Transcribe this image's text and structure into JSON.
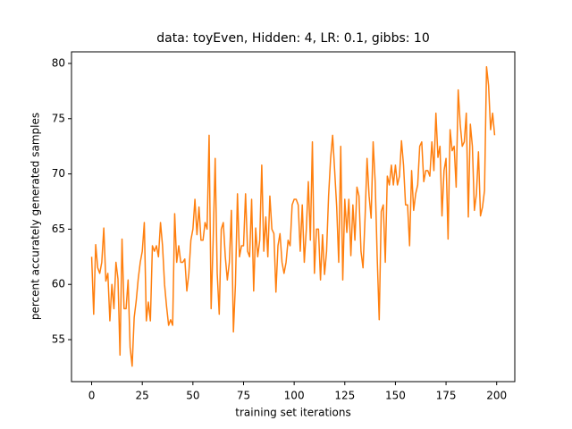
{
  "chart_data": {
    "type": "line",
    "title": "data: toyEven, Hidden: 4, LR: 0.1, gibbs: 10",
    "xlabel": "training set iterations",
    "ylabel": "percent accurately generated samples",
    "x": [
      0,
      1,
      2,
      3,
      4,
      5,
      6,
      7,
      8,
      9,
      10,
      11,
      12,
      13,
      14,
      15,
      16,
      17,
      18,
      19,
      20,
      21,
      22,
      23,
      24,
      25,
      26,
      27,
      28,
      29,
      30,
      31,
      32,
      33,
      34,
      35,
      36,
      37,
      38,
      39,
      40,
      41,
      42,
      43,
      44,
      45,
      46,
      47,
      48,
      49,
      50,
      51,
      52,
      53,
      54,
      55,
      56,
      57,
      58,
      59,
      60,
      61,
      62,
      63,
      64,
      65,
      66,
      67,
      68,
      69,
      70,
      71,
      72,
      73,
      74,
      75,
      76,
      77,
      78,
      79,
      80,
      81,
      82,
      83,
      84,
      85,
      86,
      87,
      88,
      89,
      90,
      91,
      92,
      93,
      94,
      95,
      96,
      97,
      98,
      99,
      100,
      101,
      102,
      103,
      104,
      105,
      106,
      107,
      108,
      109,
      110,
      111,
      112,
      113,
      114,
      115,
      116,
      117,
      118,
      119,
      120,
      121,
      122,
      123,
      124,
      125,
      126,
      127,
      128,
      129,
      130,
      131,
      132,
      133,
      134,
      135,
      136,
      137,
      138,
      139,
      140,
      141,
      142,
      143,
      144,
      145,
      146,
      147,
      148,
      149,
      150,
      151,
      152,
      153,
      154,
      155,
      156,
      157,
      158,
      159,
      160,
      161,
      162,
      163,
      164,
      165,
      166,
      167,
      168,
      169,
      170,
      171,
      172,
      173,
      174,
      175,
      176,
      177,
      178,
      179,
      180,
      181,
      182,
      183,
      184,
      185,
      186,
      187,
      188,
      189,
      190,
      191,
      192,
      193,
      194,
      195,
      196,
      197,
      198,
      199
    ],
    "series": [
      {
        "color": "#ff7f0e",
        "values": [
          62.5,
          57.3,
          63.6,
          61.5,
          61,
          62,
          65.1,
          60.3,
          61,
          56.7,
          60,
          57.8,
          62,
          60.5,
          53.6,
          64.1,
          57.8,
          57.8,
          60.4,
          54.3,
          52.6,
          57,
          58.5,
          60.5,
          62,
          63,
          65.6,
          56.7,
          58.4,
          56.7,
          63.5,
          63,
          63.5,
          62.5,
          65.6,
          63.5,
          60,
          58,
          56.3,
          56.8,
          56.3,
          66.4,
          62,
          63.5,
          62,
          62,
          62.3,
          59.4,
          61,
          64,
          65,
          67.7,
          64.5,
          67,
          64,
          64,
          65.6,
          65,
          73.5,
          57.8,
          64,
          71.4,
          61,
          57.3,
          65,
          65.6,
          62.5,
          60.4,
          62,
          66.7,
          55.7,
          60,
          68.2,
          62.5,
          63.5,
          63.5,
          68.2,
          63,
          62.5,
          67.7,
          59.4,
          65.1,
          62.5,
          64,
          70.8,
          63,
          66.1,
          62.5,
          68,
          65,
          64.6,
          59.3,
          63.5,
          64.6,
          62,
          61,
          62,
          64,
          63.5,
          67.2,
          67.7,
          67.7,
          67.2,
          63,
          67.2,
          62,
          65,
          69.3,
          64,
          72.9,
          61,
          65,
          65,
          60.4,
          64.5,
          60.9,
          63,
          68,
          71.4,
          73.5,
          70.3,
          67,
          62,
          72.5,
          60.4,
          67.7,
          64.7,
          67.7,
          62.6,
          67.2,
          64,
          68.8,
          68,
          63,
          61.5,
          66,
          71.4,
          68,
          66,
          72.9,
          69.3,
          62.5,
          56.8,
          66.6,
          67.2,
          62,
          69.8,
          69,
          70.8,
          69,
          70.8,
          69,
          69.8,
          73,
          70.8,
          67.2,
          67.2,
          63.5,
          70.3,
          66.7,
          68.2,
          69,
          72.5,
          72.9,
          69.3,
          70.3,
          70.3,
          69.8,
          72.9,
          70.3,
          75.5,
          71.5,
          72.5,
          66.2,
          70.3,
          71.4,
          64.1,
          74,
          72.1,
          72.5,
          68.8,
          77.6,
          74.5,
          72.5,
          72.9,
          75.5,
          66.1,
          74.5,
          72.5,
          66.7,
          68.2,
          72,
          66.2,
          67,
          68.5,
          79.7,
          78,
          74,
          75.5,
          73.5
        ]
      }
    ],
    "xlim": [
      -9.95,
      208.95
    ],
    "ylim": [
      51.2,
      81.05
    ],
    "xticks": [
      0,
      25,
      50,
      75,
      100,
      125,
      150,
      175,
      200
    ],
    "yticks": [
      55,
      60,
      65,
      70,
      75,
      80
    ],
    "grid": false
  }
}
